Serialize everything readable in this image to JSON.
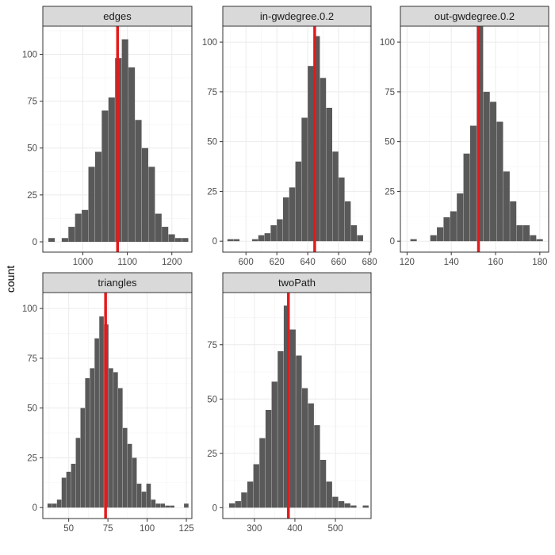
{
  "chart_data": {
    "type": "bar",
    "title": "",
    "ylabel": "count",
    "xlabel": "",
    "reference_line_color": "#e31a1c",
    "bar_color": "#595959",
    "facets": [
      {
        "label": "edges",
        "bins": [
          {
            "x": 930,
            "count": 2
          },
          {
            "x": 945,
            "count": 0
          },
          {
            "x": 960,
            "count": 2
          },
          {
            "x": 975,
            "count": 8
          },
          {
            "x": 990,
            "count": 15
          },
          {
            "x": 1005,
            "count": 17
          },
          {
            "x": 1020,
            "count": 40
          },
          {
            "x": 1035,
            "count": 48
          },
          {
            "x": 1050,
            "count": 70
          },
          {
            "x": 1065,
            "count": 77
          },
          {
            "x": 1080,
            "count": 98
          },
          {
            "x": 1095,
            "count": 108
          },
          {
            "x": 1110,
            "count": 93
          },
          {
            "x": 1125,
            "count": 65
          },
          {
            "x": 1140,
            "count": 50
          },
          {
            "x": 1155,
            "count": 40
          },
          {
            "x": 1170,
            "count": 15
          },
          {
            "x": 1185,
            "count": 8
          },
          {
            "x": 1200,
            "count": 4
          },
          {
            "x": 1215,
            "count": 2
          },
          {
            "x": 1230,
            "count": 2
          }
        ],
        "bin_width": 15,
        "reference_value": 1078,
        "xlim": [
          910,
          1245
        ],
        "ylim": [
          -5.5,
          115
        ],
        "xticks": [
          1000,
          1100,
          1200
        ],
        "xtick_labels": [
          "1000",
          "1100",
          "1200"
        ],
        "yticks": [
          0,
          25,
          50,
          75,
          100
        ],
        "ytick_labels": [
          "0",
          "25",
          "50",
          "75",
          "100"
        ]
      },
      {
        "label": "in-gwdegree.0.2",
        "bins": [
          {
            "x": 590,
            "count": 1
          },
          {
            "x": 594,
            "count": 1
          },
          {
            "x": 598,
            "count": 0
          },
          {
            "x": 602,
            "count": 0
          },
          {
            "x": 606,
            "count": 1
          },
          {
            "x": 610,
            "count": 3
          },
          {
            "x": 614,
            "count": 4
          },
          {
            "x": 618,
            "count": 8
          },
          {
            "x": 622,
            "count": 11
          },
          {
            "x": 626,
            "count": 22
          },
          {
            "x": 630,
            "count": 27
          },
          {
            "x": 634,
            "count": 40
          },
          {
            "x": 638,
            "count": 62
          },
          {
            "x": 642,
            "count": 88
          },
          {
            "x": 646,
            "count": 103
          },
          {
            "x": 650,
            "count": 82
          },
          {
            "x": 654,
            "count": 67
          },
          {
            "x": 658,
            "count": 45
          },
          {
            "x": 662,
            "count": 32
          },
          {
            "x": 666,
            "count": 20
          },
          {
            "x": 670,
            "count": 8
          },
          {
            "x": 674,
            "count": 3
          }
        ],
        "bin_width": 4,
        "reference_value": 644.5,
        "xlim": [
          585,
          681
        ],
        "ylim": [
          -5.5,
          108
        ],
        "xticks": [
          600,
          620,
          640,
          660,
          680
        ],
        "xtick_labels": [
          "600",
          "620",
          "640",
          "660",
          "680"
        ],
        "yticks": [
          0,
          25,
          50,
          75,
          100
        ],
        "ytick_labels": [
          "0",
          "25",
          "50",
          "75",
          "100"
        ]
      },
      {
        "label": "out-gwdegree.0.2",
        "bins": [
          {
            "x": 123,
            "count": 1
          },
          {
            "x": 126,
            "count": 0
          },
          {
            "x": 129,
            "count": 0
          },
          {
            "x": 132,
            "count": 3
          },
          {
            "x": 135,
            "count": 7
          },
          {
            "x": 138,
            "count": 12
          },
          {
            "x": 141,
            "count": 15
          },
          {
            "x": 144,
            "count": 24
          },
          {
            "x": 147,
            "count": 44
          },
          {
            "x": 150,
            "count": 58
          },
          {
            "x": 153,
            "count": 108
          },
          {
            "x": 156,
            "count": 75
          },
          {
            "x": 159,
            "count": 70
          },
          {
            "x": 162,
            "count": 60
          },
          {
            "x": 165,
            "count": 35
          },
          {
            "x": 168,
            "count": 20
          },
          {
            "x": 171,
            "count": 8
          },
          {
            "x": 174,
            "count": 8
          },
          {
            "x": 177,
            "count": 3
          },
          {
            "x": 180,
            "count": 1
          }
        ],
        "bin_width": 3,
        "reference_value": 152.3,
        "xlim": [
          117,
          184
        ],
        "ylim": [
          -5.5,
          108
        ],
        "xticks": [
          120,
          140,
          160,
          180
        ],
        "xtick_labels": [
          "120",
          "140",
          "160",
          "180"
        ],
        "yticks": [
          0,
          25,
          50,
          75,
          100
        ],
        "ytick_labels": [
          "0",
          "25",
          "50",
          "75",
          "100"
        ]
      },
      {
        "label": "triangles",
        "bins": [
          {
            "x": 38,
            "count": 2
          },
          {
            "x": 41,
            "count": 2
          },
          {
            "x": 44,
            "count": 4
          },
          {
            "x": 47,
            "count": 15
          },
          {
            "x": 50,
            "count": 18
          },
          {
            "x": 53,
            "count": 22
          },
          {
            "x": 56,
            "count": 35
          },
          {
            "x": 59,
            "count": 50
          },
          {
            "x": 62,
            "count": 65
          },
          {
            "x": 65,
            "count": 70
          },
          {
            "x": 68,
            "count": 85
          },
          {
            "x": 71,
            "count": 96
          },
          {
            "x": 74,
            "count": 92
          },
          {
            "x": 77,
            "count": 70
          },
          {
            "x": 80,
            "count": 68
          },
          {
            "x": 83,
            "count": 60
          },
          {
            "x": 86,
            "count": 40
          },
          {
            "x": 89,
            "count": 32
          },
          {
            "x": 92,
            "count": 25
          },
          {
            "x": 95,
            "count": 12
          },
          {
            "x": 98,
            "count": 8
          },
          {
            "x": 101,
            "count": 12
          },
          {
            "x": 104,
            "count": 4
          },
          {
            "x": 107,
            "count": 2
          },
          {
            "x": 110,
            "count": 2
          },
          {
            "x": 113,
            "count": 1
          },
          {
            "x": 116,
            "count": 1
          },
          {
            "x": 119,
            "count": 0
          },
          {
            "x": 122,
            "count": 0
          },
          {
            "x": 125,
            "count": 2
          }
        ],
        "bin_width": 3,
        "reference_value": 73.5,
        "xlim": [
          33.5,
          128.5
        ],
        "ylim": [
          -5.5,
          108
        ],
        "xticks": [
          50,
          75,
          100,
          125
        ],
        "xtick_labels": [
          "50",
          "75",
          "100",
          "125"
        ],
        "yticks": [
          0,
          25,
          50,
          75,
          100
        ],
        "ytick_labels": [
          "0",
          "25",
          "50",
          "75",
          "100"
        ]
      },
      {
        "label": "twoPath",
        "bins": [
          {
            "x": 245,
            "count": 2
          },
          {
            "x": 260,
            "count": 3
          },
          {
            "x": 275,
            "count": 7
          },
          {
            "x": 290,
            "count": 12
          },
          {
            "x": 305,
            "count": 20
          },
          {
            "x": 320,
            "count": 32
          },
          {
            "x": 335,
            "count": 45
          },
          {
            "x": 350,
            "count": 58
          },
          {
            "x": 365,
            "count": 72
          },
          {
            "x": 380,
            "count": 93
          },
          {
            "x": 395,
            "count": 82
          },
          {
            "x": 410,
            "count": 70
          },
          {
            "x": 425,
            "count": 55
          },
          {
            "x": 440,
            "count": 48
          },
          {
            "x": 455,
            "count": 38
          },
          {
            "x": 470,
            "count": 22
          },
          {
            "x": 485,
            "count": 12
          },
          {
            "x": 500,
            "count": 5
          },
          {
            "x": 515,
            "count": 3
          },
          {
            "x": 530,
            "count": 2
          },
          {
            "x": 545,
            "count": 1
          },
          {
            "x": 560,
            "count": 0
          },
          {
            "x": 575,
            "count": 1
          }
        ],
        "bin_width": 15,
        "reference_value": 384,
        "xlim": [
          222,
          588
        ],
        "ylim": [
          -5,
          99
        ],
        "xticks": [
          300,
          400,
          500
        ],
        "xtick_labels": [
          "300",
          "400",
          "500"
        ],
        "yticks": [
          0,
          25,
          50,
          75
        ],
        "ytick_labels": [
          "0",
          "25",
          "50",
          "75"
        ]
      }
    ]
  }
}
